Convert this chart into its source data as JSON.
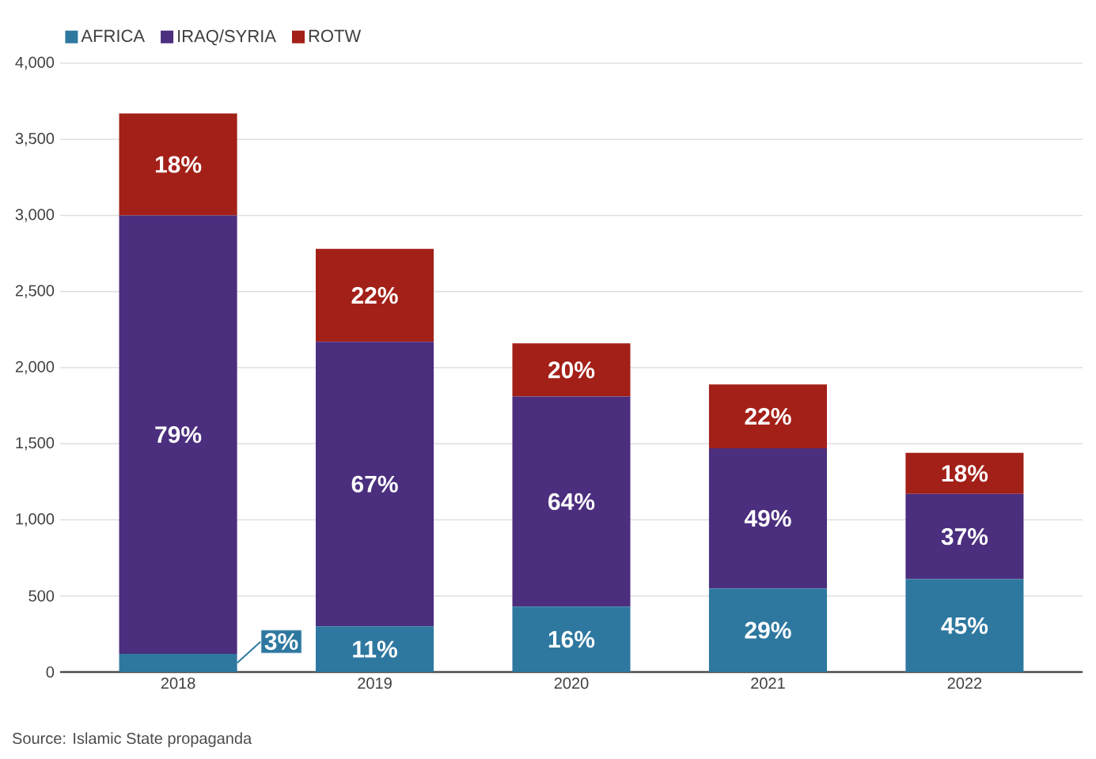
{
  "chart_data": {
    "type": "bar",
    "stacked": true,
    "categories": [
      "2018",
      "2019",
      "2020",
      "2021",
      "2022"
    ],
    "series": [
      {
        "name": "AFRICA",
        "color": "#2e78a0",
        "values": [
          120,
          300,
          430,
          550,
          610
        ]
      },
      {
        "name": "IRAQ/SYRIA",
        "color": "#4b2e7e",
        "values": [
          2880,
          1870,
          1380,
          920,
          560
        ]
      },
      {
        "name": "ROTW",
        "color": "#a32018",
        "values": [
          670,
          610,
          350,
          420,
          270
        ]
      }
    ],
    "ylim": [
      0,
      4000
    ],
    "yticks": [
      0,
      {
        "value": 500,
        "label": "500"
      },
      {
        "value": 1000,
        "label": "1,000"
      },
      {
        "value": 1500,
        "label": "1,500"
      },
      {
        "value": 2000,
        "label": "2,000"
      },
      {
        "value": 2500,
        "label": "2,500"
      },
      {
        "value": 3000,
        "label": "3,000"
      },
      {
        "value": 3500,
        "label": "3,500"
      },
      {
        "value": 4000,
        "label": "4,000"
      }
    ],
    "grid": "y",
    "legend": "top left",
    "annotations": [
      "Source: Islamic State propaganda",
      "3%",
      "79%",
      "18%",
      "11%",
      "67%",
      "22%",
      "16%",
      "64%",
      "20%",
      "29%",
      "49%",
      "22%",
      "45%",
      "37%",
      "18%"
    ]
  }
}
